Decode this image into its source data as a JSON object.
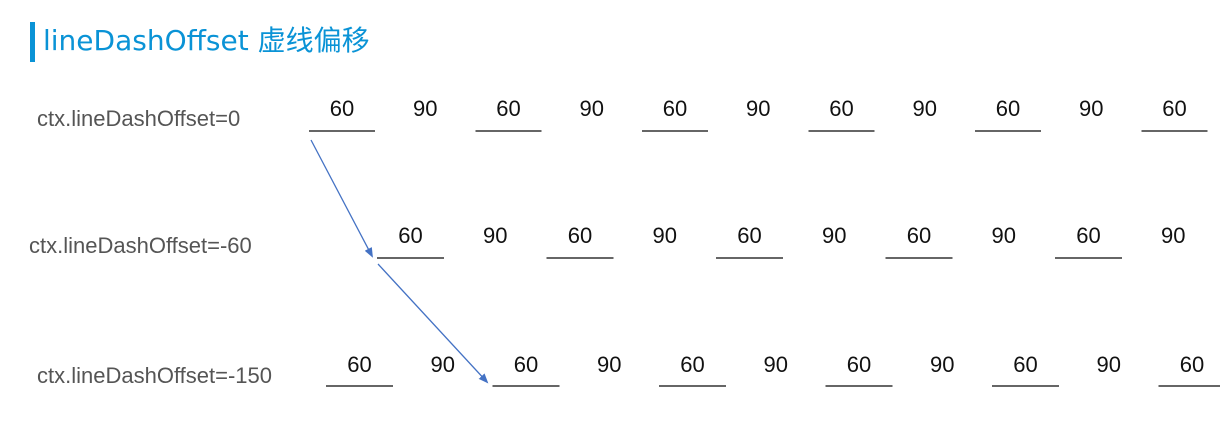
{
  "title": "lineDashOffset 虚线偏移",
  "accent_color": "#0a93d6",
  "arrow_color": "#4472c4",
  "rows": [
    {
      "label": "ctx.lineDashOffset=0",
      "offset": 0,
      "segments": [
        "60",
        "90",
        "60",
        "90",
        "60",
        "90",
        "60",
        "90",
        "60",
        "90",
        "60"
      ]
    },
    {
      "label": "ctx.lineDashOffset=-60",
      "offset": -60,
      "segments": [
        "60",
        "90",
        "60",
        "90",
        "60",
        "90",
        "60",
        "90",
        "60",
        "90"
      ]
    },
    {
      "label": "ctx.lineDashOffset=-150",
      "offset": -150,
      "segments": [
        "60",
        "90",
        "60",
        "90",
        "60",
        "90",
        "60",
        "90",
        "60",
        "90",
        "60"
      ]
    }
  ]
}
